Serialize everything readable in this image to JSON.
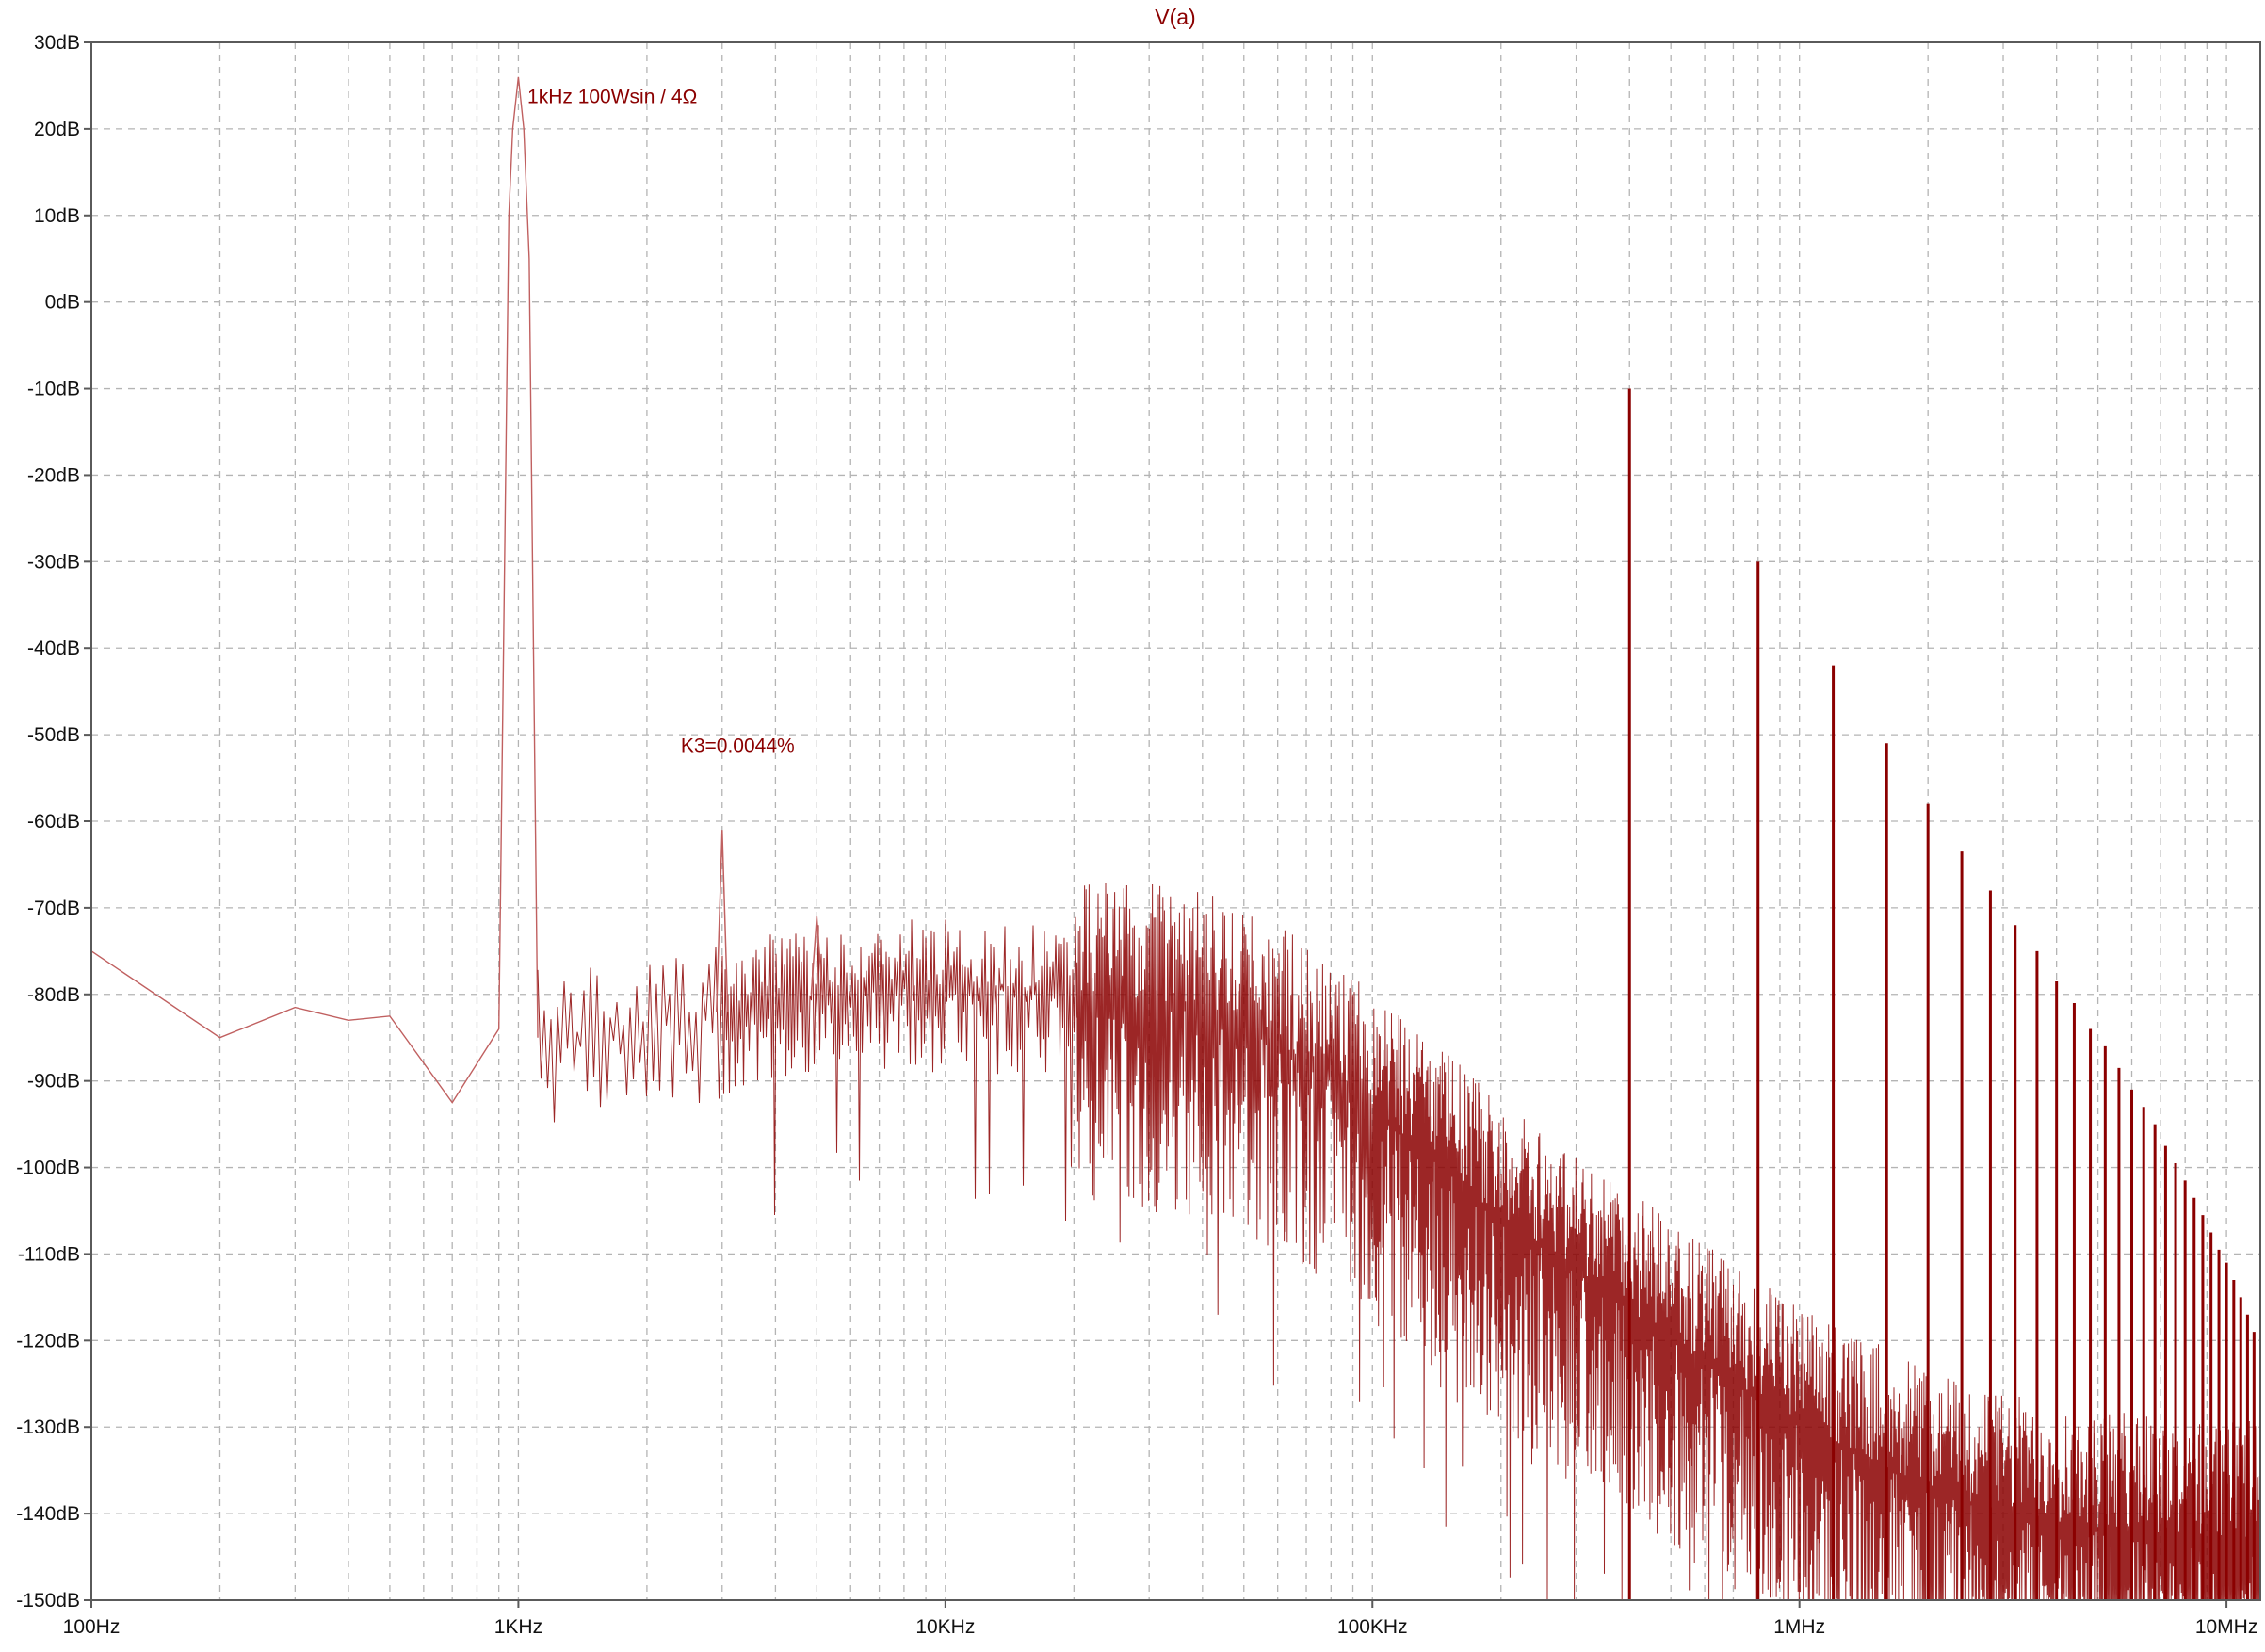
{
  "chart_data": {
    "type": "line",
    "title": "V(a)",
    "xlabel": "",
    "ylabel": "",
    "xscale": "log",
    "xlim": [
      100,
      12000000
    ],
    "ylim": [
      -150,
      30
    ],
    "grid": true,
    "x_tick_values": [
      100,
      1000,
      10000,
      100000,
      1000000,
      10000000
    ],
    "x_tick_labels": [
      "100Hz",
      "1KHz",
      "10KHz",
      "100KHz",
      "1MHz",
      "10MHz"
    ],
    "y_tick_values": [
      30,
      20,
      10,
      0,
      -10,
      -20,
      -30,
      -40,
      -50,
      -60,
      -70,
      -80,
      -90,
      -100,
      -110,
      -120,
      -130,
      -140,
      -150
    ],
    "y_tick_labels": [
      "30dB",
      "20dB",
      "10dB",
      "0dB",
      "-10dB",
      "-20dB",
      "-30dB",
      "-40dB",
      "-50dB",
      "-60dB",
      "-70dB",
      "-80dB",
      "-90dB",
      "-100dB",
      "-110dB",
      "-120dB",
      "-130dB",
      "-140dB",
      "-150dB"
    ],
    "colors": {
      "trace": "#8b0000",
      "grid": "#b4b4b4",
      "axes": "#5a5a5a"
    },
    "annotations": [
      {
        "text": "1kHz  100Wsin / 4Ω",
        "x": 1050,
        "y": 23
      },
      {
        "text": "K3=0.0044%",
        "x": 2400,
        "y": -52
      }
    ],
    "series": [
      {
        "name": "V(a)",
        "noise_floor_db": [
          [
            100,
            -75
          ],
          [
            200,
            -85
          ],
          [
            300,
            -81.5
          ],
          [
            400,
            -83
          ],
          [
            500,
            -82.5
          ],
          [
            700,
            -92.5
          ],
          [
            900,
            -84
          ],
          [
            1200,
            -85
          ],
          [
            2000,
            -84
          ],
          [
            3000,
            -82
          ],
          [
            5000,
            -80
          ],
          [
            10000,
            -79
          ],
          [
            20000,
            -80
          ],
          [
            40000,
            -82
          ],
          [
            60000,
            -86
          ],
          [
            100000,
            -93
          ],
          [
            200000,
            -106
          ],
          [
            300000,
            -112
          ],
          [
            500000,
            -120
          ],
          [
            1000000,
            -130
          ],
          [
            2000000,
            -137
          ],
          [
            3000000,
            -140
          ],
          [
            5000000,
            -142
          ],
          [
            10000000,
            -143
          ],
          [
            12000000,
            -143
          ]
        ],
        "fundamental": {
          "x": 1000,
          "y": 26
        },
        "harmonics": [
          {
            "x": 3000,
            "y": -61
          },
          {
            "x": 5000,
            "y": -71
          }
        ],
        "switching_spurs": [
          {
            "x": 400000,
            "y": -10
          },
          {
            "x": 800000,
            "y": -30
          },
          {
            "x": 1200000,
            "y": -42
          },
          {
            "x": 1600000,
            "y": -51
          },
          {
            "x": 2000000,
            "y": -58
          },
          {
            "x": 2400000,
            "y": -63.5
          },
          {
            "x": 2800000,
            "y": -68
          },
          {
            "x": 3200000,
            "y": -72
          },
          {
            "x": 3600000,
            "y": -75
          },
          {
            "x": 4000000,
            "y": -78.5
          },
          {
            "x": 4400000,
            "y": -81
          },
          {
            "x": 4800000,
            "y": -84
          },
          {
            "x": 5200000,
            "y": -86
          },
          {
            "x": 5600000,
            "y": -88.5
          },
          {
            "x": 6000000,
            "y": -91
          },
          {
            "x": 6400000,
            "y": -93
          },
          {
            "x": 6800000,
            "y": -95
          },
          {
            "x": 7200000,
            "y": -97.5
          },
          {
            "x": 7600000,
            "y": -99.5
          },
          {
            "x": 8000000,
            "y": -101.5
          },
          {
            "x": 8400000,
            "y": -103.5
          },
          {
            "x": 8800000,
            "y": -105.5
          },
          {
            "x": 9200000,
            "y": -107.5
          },
          {
            "x": 9600000,
            "y": -109.5
          },
          {
            "x": 10000000,
            "y": -111
          },
          {
            "x": 10400000,
            "y": -113
          },
          {
            "x": 10800000,
            "y": -115
          },
          {
            "x": 11200000,
            "y": -117
          },
          {
            "x": 11600000,
            "y": -119
          }
        ]
      }
    ]
  }
}
